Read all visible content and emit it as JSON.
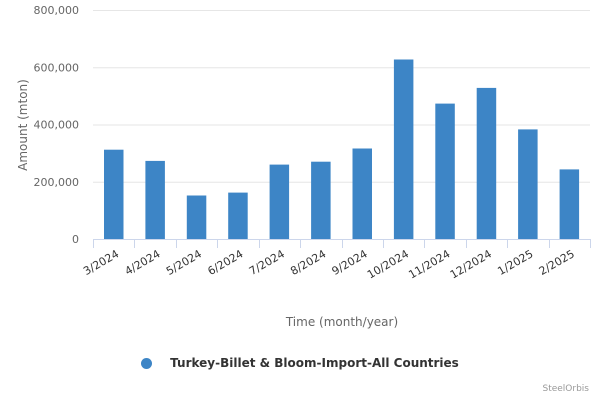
{
  "chart_data": {
    "type": "bar",
    "categories": [
      "3/2024",
      "4/2024",
      "5/2024",
      "6/2024",
      "7/2024",
      "8/2024",
      "9/2024",
      "10/2024",
      "11/2024",
      "12/2024",
      "1/2025",
      "2/2025"
    ],
    "series": [
      {
        "name": "Turkey-Billet & Bloom-Import-All Countries",
        "values": [
          312000,
          273000,
          152000,
          162000,
          260000,
          270000,
          316000,
          627000,
          473000,
          528000,
          383000,
          243000
        ]
      }
    ],
    "xlabel": "Time (month/year)",
    "ylabel": "Amount (mton)",
    "ylim": [
      0,
      800000
    ],
    "yticks": [
      "0",
      "200,000",
      "400,000",
      "600,000",
      "800,000"
    ],
    "grid": true,
    "legend_position": "bottom-center",
    "bar_color": "#3d85c6"
  },
  "credit": "SteelOrbis"
}
